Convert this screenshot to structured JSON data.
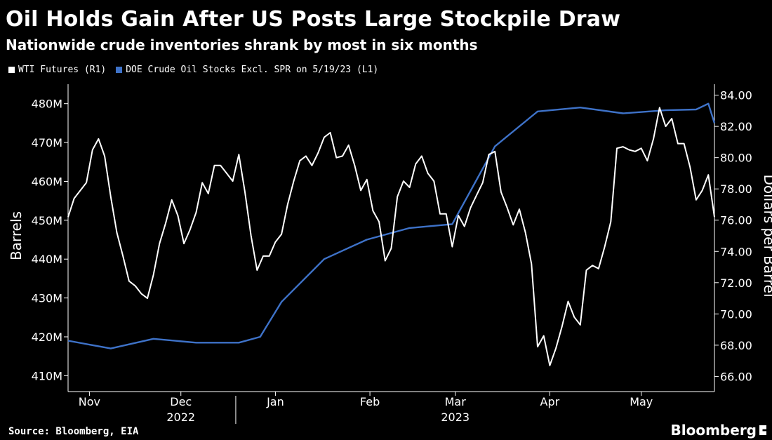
{
  "title": "Oil Holds Gain After US Posts Large Stockpile Draw",
  "subtitle": "Nationwide crude inventories shrank by most in six months",
  "source": "Source: Bloomberg, EIA",
  "brand": "Bloomberg",
  "colors": {
    "wti": "#ffffff",
    "stocks": "#3e72c8",
    "background": "#000000",
    "axis": "#ffffff"
  },
  "chart_data": {
    "type": "line",
    "x_range": [
      "2022-10-25",
      "2023-05-25"
    ],
    "month_ticks": [
      {
        "label": "Nov",
        "date": "2022-11-01"
      },
      {
        "label": "Dec",
        "date": "2022-12-01"
      },
      {
        "label": "Jan",
        "date": "2023-01-01"
      },
      {
        "label": "Feb",
        "date": "2023-02-01"
      },
      {
        "label": "Mar",
        "date": "2023-03-01"
      },
      {
        "label": "Apr",
        "date": "2023-04-01"
      },
      {
        "label": "May",
        "date": "2023-05-01"
      }
    ],
    "year_labels": [
      {
        "label": "2022",
        "date": "2022-12-01"
      },
      {
        "label": "2023",
        "date": "2023-03-01"
      }
    ],
    "year_divider": "2022-12-19",
    "left_axis": {
      "label": "Barrels",
      "ylim": [
        407000000,
        485000000
      ],
      "ticks": [
        410000000,
        420000000,
        430000000,
        440000000,
        450000000,
        460000000,
        470000000,
        480000000
      ],
      "tick_labels": [
        "410M",
        "420M",
        "430M",
        "440M",
        "450M",
        "460M",
        "470M",
        "480M"
      ]
    },
    "right_axis": {
      "label": "Dollars per Barrel",
      "ylim": [
        65.3,
        84.7
      ],
      "ticks": [
        66,
        68,
        70,
        72,
        74,
        76,
        78,
        80,
        82,
        84
      ],
      "tick_labels": [
        "66.00",
        "68.00",
        "70.00",
        "72.00",
        "74.00",
        "76.00",
        "78.00",
        "80.00",
        "82.00",
        "84.00"
      ]
    },
    "series": [
      {
        "name": "WTI Futures (R1)",
        "axis": "right",
        "points": [
          [
            "2022-10-25",
            76.2
          ],
          [
            "2022-10-27",
            77.4
          ],
          [
            "2022-10-31",
            78.4
          ],
          [
            "2022-11-02",
            80.5
          ],
          [
            "2022-11-04",
            81.2
          ],
          [
            "2022-11-06",
            80.1
          ],
          [
            "2022-11-08",
            77.5
          ],
          [
            "2022-11-10",
            75.2
          ],
          [
            "2022-11-12",
            73.7
          ],
          [
            "2022-11-14",
            72.1
          ],
          [
            "2022-11-16",
            71.8
          ],
          [
            "2022-11-18",
            71.3
          ],
          [
            "2022-11-20",
            71.0
          ],
          [
            "2022-11-22",
            72.5
          ],
          [
            "2022-11-24",
            74.5
          ],
          [
            "2022-11-26",
            75.8
          ],
          [
            "2022-11-28",
            77.3
          ],
          [
            "2022-11-30",
            76.3
          ],
          [
            "2022-12-02",
            74.5
          ],
          [
            "2022-12-04",
            75.4
          ],
          [
            "2022-12-06",
            76.5
          ],
          [
            "2022-12-08",
            78.4
          ],
          [
            "2022-12-10",
            77.7
          ],
          [
            "2022-12-12",
            79.5
          ],
          [
            "2022-12-14",
            79.5
          ],
          [
            "2022-12-16",
            79.0
          ],
          [
            "2022-12-18",
            78.5
          ],
          [
            "2022-12-20",
            80.2
          ],
          [
            "2022-12-22",
            77.8
          ],
          [
            "2022-12-24",
            75.0
          ],
          [
            "2022-12-26",
            72.8
          ],
          [
            "2022-12-28",
            73.7
          ],
          [
            "2022-12-30",
            73.7
          ],
          [
            "2023-01-01",
            74.6
          ],
          [
            "2023-01-03",
            75.1
          ],
          [
            "2023-01-05",
            77.0
          ],
          [
            "2023-01-07",
            78.5
          ],
          [
            "2023-01-09",
            79.8
          ],
          [
            "2023-01-11",
            80.1
          ],
          [
            "2023-01-13",
            79.5
          ],
          [
            "2023-01-15",
            80.3
          ],
          [
            "2023-01-17",
            81.3
          ],
          [
            "2023-01-19",
            81.6
          ],
          [
            "2023-01-21",
            80.0
          ],
          [
            "2023-01-23",
            80.1
          ],
          [
            "2023-01-25",
            80.8
          ],
          [
            "2023-01-27",
            79.5
          ],
          [
            "2023-01-29",
            77.9
          ],
          [
            "2023-01-31",
            78.6
          ],
          [
            "2023-02-02",
            76.6
          ],
          [
            "2023-02-04",
            75.9
          ],
          [
            "2023-02-06",
            73.4
          ],
          [
            "2023-02-08",
            74.2
          ],
          [
            "2023-02-10",
            77.5
          ],
          [
            "2023-02-12",
            78.5
          ],
          [
            "2023-02-14",
            78.1
          ],
          [
            "2023-02-16",
            79.6
          ],
          [
            "2023-02-18",
            80.1
          ],
          [
            "2023-02-20",
            79.0
          ],
          [
            "2023-02-22",
            78.5
          ],
          [
            "2023-02-24",
            76.4
          ],
          [
            "2023-02-26",
            76.4
          ],
          [
            "2023-02-28",
            74.3
          ],
          [
            "2023-03-02",
            76.3
          ],
          [
            "2023-03-04",
            75.6
          ],
          [
            "2023-03-06",
            76.8
          ],
          [
            "2023-03-08",
            77.6
          ],
          [
            "2023-03-10",
            78.4
          ],
          [
            "2023-03-12",
            80.2
          ],
          [
            "2023-03-14",
            80.4
          ],
          [
            "2023-03-16",
            77.8
          ],
          [
            "2023-03-18",
            76.8
          ],
          [
            "2023-03-20",
            75.7
          ],
          [
            "2023-03-22",
            76.7
          ],
          [
            "2023-03-24",
            75.2
          ],
          [
            "2023-03-26",
            73.2
          ],
          [
            "2023-03-28",
            67.9
          ],
          [
            "2023-03-30",
            68.6
          ],
          [
            "2023-04-01",
            66.7
          ],
          [
            "2023-04-03",
            67.8
          ],
          [
            "2023-04-05",
            69.2
          ],
          [
            "2023-04-07",
            70.8
          ],
          [
            "2023-04-09",
            69.8
          ],
          [
            "2023-04-11",
            69.3
          ],
          [
            "2023-04-13",
            72.8
          ],
          [
            "2023-04-15",
            73.1
          ],
          [
            "2023-04-17",
            72.9
          ],
          [
            "2023-04-19",
            74.3
          ],
          [
            "2023-04-21",
            75.9
          ],
          [
            "2023-04-23",
            80.6
          ],
          [
            "2023-04-25",
            80.7
          ],
          [
            "2023-04-27",
            80.5
          ],
          [
            "2023-04-29",
            80.4
          ],
          [
            "2023-05-01",
            80.6
          ],
          [
            "2023-05-03",
            79.8
          ],
          [
            "2023-05-05",
            81.2
          ],
          [
            "2023-05-07",
            83.2
          ],
          [
            "2023-05-09",
            82.0
          ],
          [
            "2023-05-11",
            82.5
          ],
          [
            "2023-05-13",
            80.9
          ],
          [
            "2023-05-15",
            80.9
          ],
          [
            "2023-05-17",
            79.4
          ],
          [
            "2023-05-19",
            77.3
          ],
          [
            "2023-05-21",
            77.9
          ],
          [
            "2023-05-23",
            78.9
          ],
          [
            "2023-05-25",
            76.2
          ]
        ]
      },
      {
        "name": "DOE Crude Oil Stocks Excl. SPR on 5/19/23 (L1)",
        "axis": "left",
        "points": [
          [
            "2022-10-25",
            419000000
          ],
          [
            "2022-11-08",
            417000000
          ],
          [
            "2022-11-22",
            419500000
          ],
          [
            "2022-12-06",
            418500000
          ],
          [
            "2022-12-20",
            418500000
          ],
          [
            "2022-12-27",
            420000000
          ],
          [
            "2023-01-03",
            429000000
          ],
          [
            "2023-01-17",
            440000000
          ],
          [
            "2023-01-31",
            445000000
          ],
          [
            "2023-02-14",
            448000000
          ],
          [
            "2023-02-28",
            449000000
          ],
          [
            "2023-03-14",
            469000000
          ],
          [
            "2023-03-28",
            478000000
          ],
          [
            "2023-04-11",
            479000000
          ],
          [
            "2023-04-25",
            477500000
          ],
          [
            "2023-05-09",
            478300000
          ],
          [
            "2023-05-19",
            478500000
          ],
          [
            "2023-05-23",
            480000000
          ],
          [
            "2023-05-25",
            475000000
          ]
        ]
      }
    ]
  }
}
